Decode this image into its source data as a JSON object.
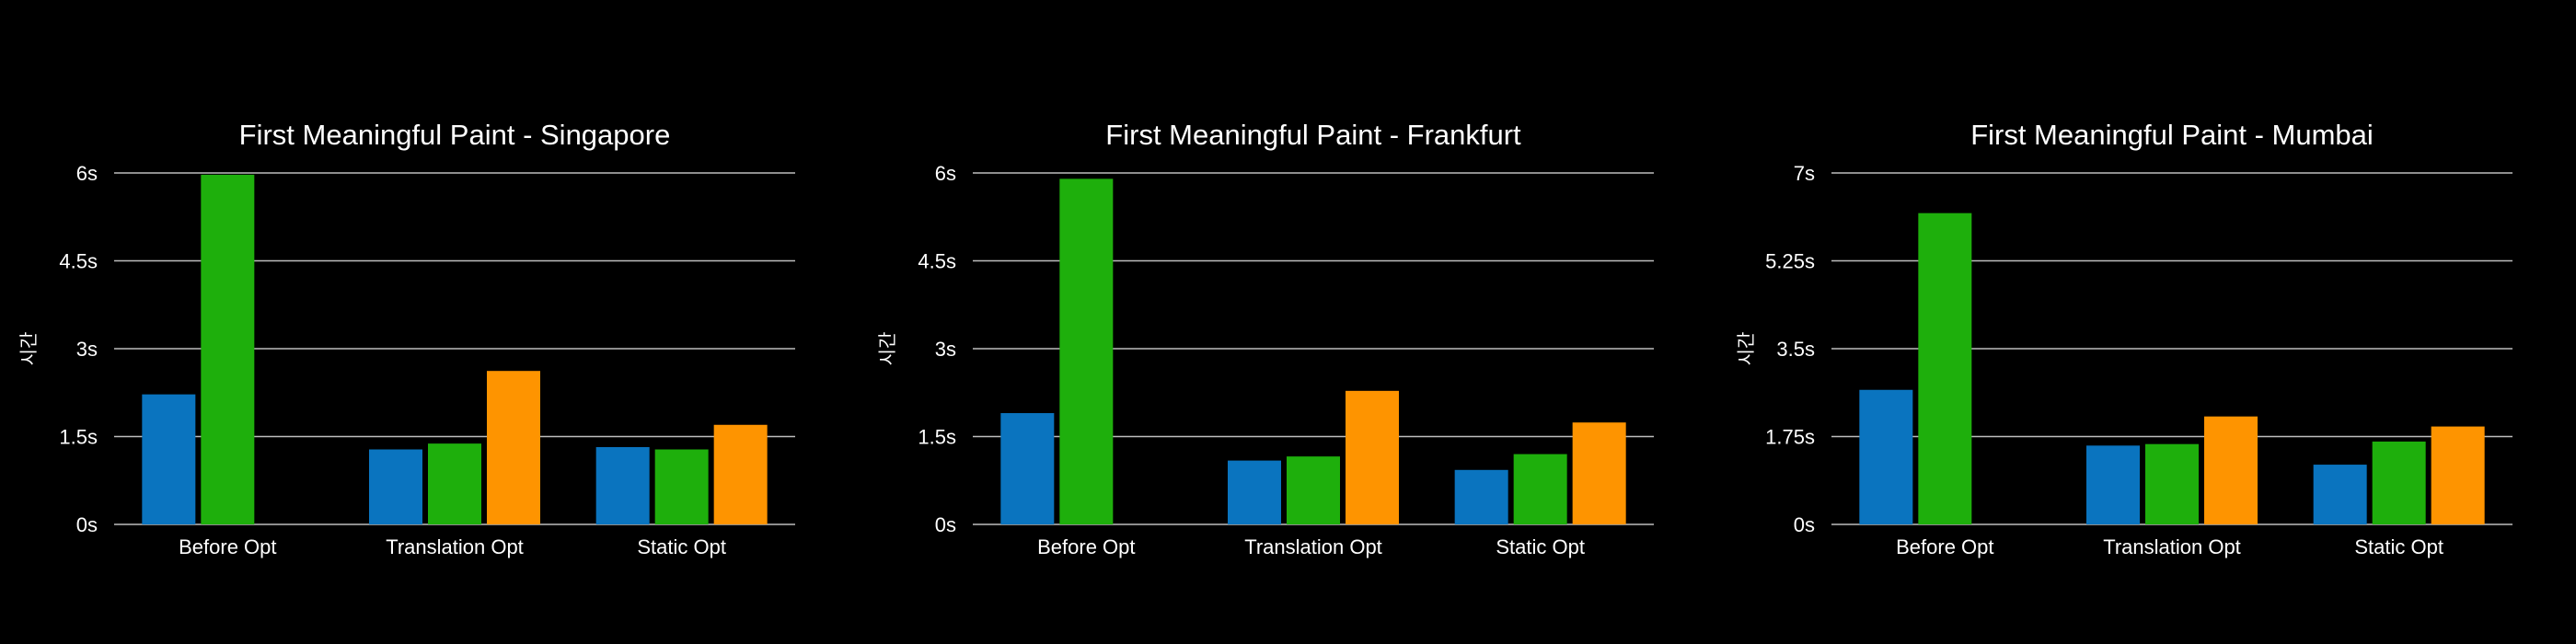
{
  "colors": {
    "background": "#000000",
    "grid": "#bdbdbd",
    "text": "#ffffff",
    "series": [
      "#0a74bf",
      "#1eaf0c",
      "#fe9400"
    ]
  },
  "chart_data": [
    {
      "type": "bar",
      "title": "First Meaningful Paint - Singapore",
      "ylabel": "시간",
      "xlabel": "",
      "categories": [
        "Before Opt",
        "Translation Opt",
        "Static Opt"
      ],
      "yticks": [
        "0s",
        "1.5s",
        "3s",
        "4.5s",
        "6s"
      ],
      "ylim": [
        0,
        6
      ],
      "grid": true,
      "series": [
        {
          "values": [
            2.22,
            1.28,
            1.32
          ]
        },
        {
          "values": [
            5.97,
            1.38,
            1.28
          ]
        },
        {
          "values": [
            null,
            2.62,
            1.7
          ]
        }
      ]
    },
    {
      "type": "bar",
      "title": "First Meaningful Paint - Frankfurt",
      "ylabel": "시간",
      "xlabel": "",
      "categories": [
        "Before Opt",
        "Translation Opt",
        "Static Opt"
      ],
      "yticks": [
        "0s",
        "1.5s",
        "3s",
        "4.5s",
        "6s"
      ],
      "ylim": [
        0,
        6
      ],
      "grid": true,
      "series": [
        {
          "values": [
            1.9,
            1.09,
            0.93
          ]
        },
        {
          "values": [
            5.9,
            1.16,
            1.2
          ]
        },
        {
          "values": [
            null,
            2.28,
            1.74
          ]
        }
      ]
    },
    {
      "type": "bar",
      "title": "First Meaningful Paint - Mumbai",
      "ylabel": "시간",
      "xlabel": "",
      "categories": [
        "Before Opt",
        "Translation Opt",
        "Static Opt"
      ],
      "yticks": [
        "0s",
        "1.75s",
        "3.5s",
        "5.25s",
        "7s"
      ],
      "ylim": [
        0,
        7
      ],
      "grid": true,
      "series": [
        {
          "values": [
            2.68,
            1.57,
            1.19
          ]
        },
        {
          "values": [
            6.2,
            1.6,
            1.65
          ]
        },
        {
          "values": [
            null,
            2.15,
            1.95
          ]
        }
      ]
    }
  ]
}
